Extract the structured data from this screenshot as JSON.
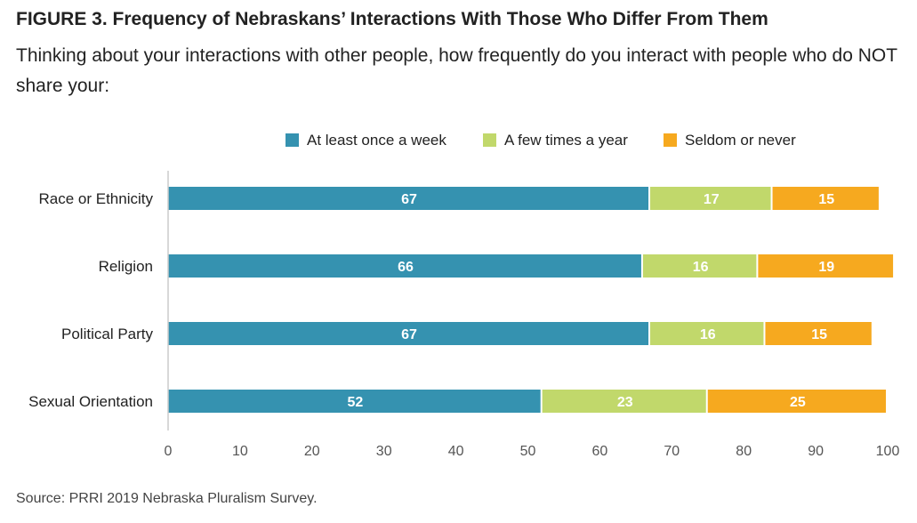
{
  "title": "FIGURE 3. Frequency of Nebraskans’ Interactions With Those Who Differ From Them",
  "subtitle": "Thinking about your interactions with other people, how frequently do you interact with people who do NOT share your:",
  "source": "Source: PRRI 2019 Nebraska Pluralism Survey.",
  "chart_data": {
    "type": "bar",
    "orientation": "horizontal",
    "stacked": true,
    "categories": [
      "Race or Ethnicity",
      "Religion",
      "Political Party",
      "Sexual Orientation"
    ],
    "series": [
      {
        "name": "At least once a week",
        "color": "#3592b0",
        "values": [
          67,
          66,
          67,
          52
        ]
      },
      {
        "name": "A few times a year",
        "color": "#c1d86b",
        "values": [
          17,
          16,
          16,
          23
        ]
      },
      {
        "name": "Seldom or never",
        "color": "#f6a91f",
        "values": [
          15,
          19,
          15,
          25
        ]
      }
    ],
    "xlim": [
      0,
      100
    ],
    "xticks": [
      0,
      10,
      20,
      30,
      40,
      50,
      60,
      70,
      80,
      90,
      100
    ],
    "grid": false,
    "legend_position": "top"
  }
}
